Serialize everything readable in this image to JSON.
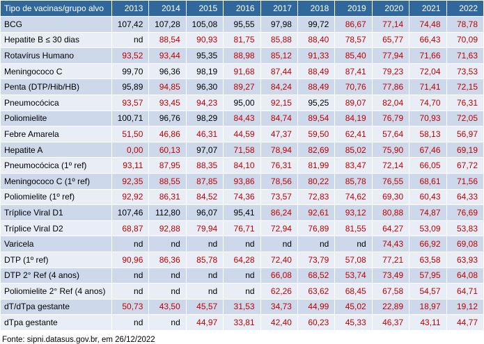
{
  "chart_data": {
    "type": "table",
    "title": "",
    "columns": [
      "Tipo de vacinas/grupo alvo",
      "2013",
      "2014",
      "2015",
      "2016",
      "2017",
      "2018",
      "2019",
      "2020",
      "2021",
      "2022"
    ],
    "rows": [
      {
        "label": "BCG",
        "values": [
          "107,42",
          "107,28",
          "105,08",
          "95,55",
          "97,98",
          "99,72",
          "86,67",
          "77,14",
          "74,48",
          "78,78"
        ],
        "red": [
          0,
          0,
          0,
          0,
          0,
          0,
          1,
          1,
          1,
          1
        ]
      },
      {
        "label": "Hepatite B ≤ 30 dias",
        "values": [
          "nd",
          "88,54",
          "90,93",
          "81,75",
          "85,88",
          "88,40",
          "78,57",
          "65,77",
          "66,43",
          "70,09"
        ],
        "red": [
          0,
          1,
          1,
          1,
          1,
          1,
          1,
          1,
          1,
          1
        ]
      },
      {
        "label": "Rotavírus Humano",
        "values": [
          "93,52",
          "93,44",
          "95,35",
          "88,98",
          "85,12",
          "91,33",
          "85,40",
          "77,94",
          "71,66",
          "71,63"
        ],
        "red": [
          1,
          1,
          0,
          1,
          1,
          1,
          1,
          1,
          1,
          1
        ]
      },
      {
        "label": "Meningococo C",
        "values": [
          "99,70",
          "96,36",
          "98,19",
          "91,68",
          "87,44",
          "88,49",
          "87,41",
          "79,23",
          "72,04",
          "73,53"
        ],
        "red": [
          0,
          0,
          0,
          1,
          1,
          1,
          1,
          1,
          1,
          1
        ]
      },
      {
        "label": "Penta (DTP/Hib/HB)",
        "values": [
          "95,89",
          "94,85",
          "96,30",
          "89,27",
          "84,24",
          "88,49",
          "70,76",
          "77,86",
          "71,41",
          "72,15"
        ],
        "red": [
          0,
          1,
          0,
          1,
          1,
          1,
          1,
          1,
          1,
          1
        ]
      },
      {
        "label": "Pneumocócica",
        "values": [
          "93,57",
          "93,45",
          "94,23",
          "95,00",
          "92,15",
          "95,25",
          "89,07",
          "82,04",
          "74,70",
          "76,31"
        ],
        "red": [
          1,
          1,
          1,
          0,
          1,
          0,
          1,
          1,
          1,
          1
        ]
      },
      {
        "label": "Poliomielite",
        "values": [
          "100,71",
          "96,76",
          "98,29",
          "84,43",
          "84,74",
          "89,54",
          "84,19",
          "76,79",
          "70,93",
          "72,05"
        ],
        "red": [
          0,
          0,
          0,
          1,
          1,
          1,
          1,
          1,
          1,
          1
        ]
      },
      {
        "label": "Febre Amarela",
        "values": [
          "51,50",
          "46,86",
          "46,31",
          "44,59",
          "47,37",
          "59,50",
          "62,41",
          "57,64",
          "58,13",
          "56,97"
        ],
        "red": [
          1,
          1,
          1,
          1,
          1,
          1,
          1,
          1,
          1,
          1
        ]
      },
      {
        "label": "Hepatite A",
        "values": [
          "0,00",
          "60,13",
          "97,07",
          "71,58",
          "78,94",
          "82,69",
          "85,02",
          "75,90",
          "67,46",
          "69,19"
        ],
        "red": [
          1,
          1,
          0,
          1,
          1,
          1,
          1,
          1,
          1,
          1
        ]
      },
      {
        "label": "Pneumocócica (1º ref)",
        "values": [
          "93,11",
          "87,95",
          "88,35",
          "84,10",
          "76,31",
          "81,99",
          "83,47",
          "72,14",
          "66,05",
          "67,72"
        ],
        "red": [
          1,
          1,
          1,
          1,
          1,
          1,
          1,
          1,
          1,
          1
        ]
      },
      {
        "label": "Meningococo C (1º ref)",
        "values": [
          "92,35",
          "88,55",
          "87,85",
          "93,86",
          "78,56",
          "80,22",
          "85,78",
          "76,55",
          "68,61",
          "71,56"
        ],
        "red": [
          1,
          1,
          1,
          1,
          1,
          1,
          1,
          1,
          1,
          1
        ]
      },
      {
        "label": "Poliomielite (1º ref)",
        "values": [
          "92,92",
          "86,31",
          "84,52",
          "74,36",
          "73,57",
          "72,83",
          "74,62",
          "69,30",
          "60,43",
          "64,33"
        ],
        "red": [
          1,
          1,
          1,
          1,
          1,
          1,
          1,
          1,
          1,
          1
        ]
      },
      {
        "label": "Tríplice Viral D1",
        "values": [
          "107,46",
          "112,80",
          "96,07",
          "95,41",
          "86,24",
          "92,61",
          "93,12",
          "80,88",
          "74,87",
          "76,69"
        ],
        "red": [
          0,
          0,
          0,
          0,
          1,
          1,
          1,
          1,
          1,
          1
        ]
      },
      {
        "label": "Tríplice Viral D2",
        "values": [
          "68,87",
          "92,88",
          "79,94",
          "76,71",
          "72,94",
          "76,89",
          "81,55",
          "64,27",
          "53,09",
          "53,83"
        ],
        "red": [
          1,
          1,
          1,
          1,
          1,
          1,
          1,
          1,
          1,
          1
        ]
      },
      {
        "label": "Varicela",
        "values": [
          "nd",
          "nd",
          "nd",
          "nd",
          "nd",
          "nd",
          "nd",
          "74,43",
          "66,92",
          "69,08"
        ],
        "red": [
          0,
          0,
          0,
          0,
          0,
          0,
          0,
          1,
          1,
          1
        ]
      },
      {
        "label": "DTP (1º ref)",
        "values": [
          "90,96",
          "86,36",
          "85,78",
          "64,28",
          "72,40",
          "73,79",
          "57,08",
          "77,21",
          "63,58",
          "63,93"
        ],
        "red": [
          1,
          1,
          1,
          1,
          1,
          1,
          1,
          1,
          1,
          1
        ]
      },
      {
        "label": "DTP 2° Ref (4 anos)",
        "values": [
          "nd",
          "nd",
          "nd",
          "nd",
          "66,08",
          "68,52",
          "53,74",
          "73,49",
          "57,95",
          "64,08"
        ],
        "red": [
          0,
          0,
          0,
          0,
          1,
          1,
          1,
          1,
          1,
          1
        ]
      },
      {
        "label": "Poliomielite 2° Ref (4 anos)",
        "values": [
          "nd",
          "nd",
          "nd",
          "nd",
          "62,26",
          "63,62",
          "68,45",
          "67,58",
          "54,57",
          "64,71"
        ],
        "red": [
          0,
          0,
          0,
          0,
          1,
          1,
          1,
          1,
          1,
          1
        ]
      },
      {
        "label": "dT/dTpa gestante",
        "values": [
          "50,73",
          "43,50",
          "45,57",
          "31,53",
          "34,73",
          "44,99",
          "45,02",
          "22,89",
          "18,97",
          "19,12"
        ],
        "red": [
          1,
          1,
          1,
          1,
          1,
          1,
          1,
          1,
          1,
          1
        ]
      },
      {
        "label": "dTpa gestante",
        "values": [
          "nd",
          "nd",
          "44,97",
          "33,81",
          "42,40",
          "60,23",
          "45,33",
          "46,37",
          "43,11",
          "44,77"
        ],
        "red": [
          0,
          0,
          1,
          1,
          1,
          1,
          1,
          1,
          1,
          1
        ]
      }
    ],
    "source_note": "Fonte: sipni.datasus.gov.br, em 26/12/2022"
  },
  "colors": {
    "header_bg": "#31689B",
    "header_text": "#FFFFFF",
    "band_dark": "#CDD9EA",
    "band_light": "#E9EEF6",
    "value_red": "#C00000",
    "value_black": "#000000",
    "label_text": "#000000",
    "grid": "#FFFFFF"
  }
}
